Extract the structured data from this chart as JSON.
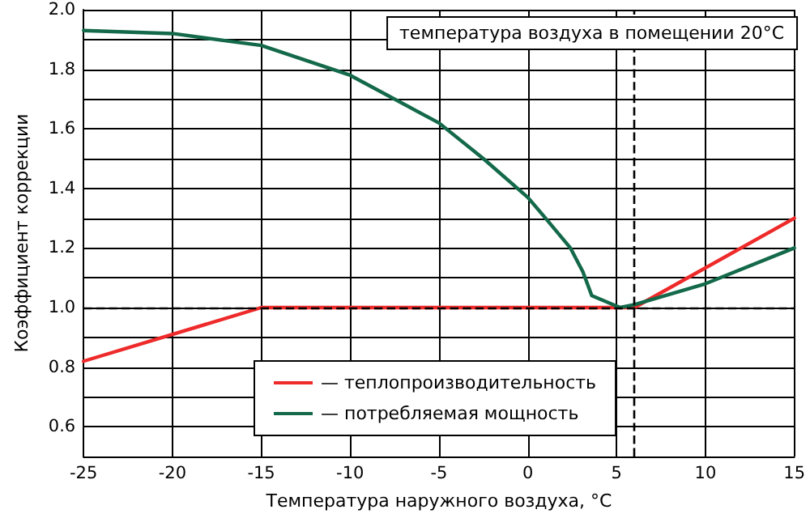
{
  "chart_data": {
    "type": "line",
    "xlabel": "Температура наружного воздуха, °C",
    "ylabel": "Коэффициент коррекции",
    "annotations": [
      "температура воздуха в помещении 20°C"
    ],
    "xlim": [
      -25,
      15
    ],
    "xticks": [
      -25,
      -20,
      -15,
      -10,
      -5,
      0,
      5,
      10,
      15
    ],
    "ylim": [
      0.5,
      2.0
    ],
    "yticks": [
      0.6,
      {
        "value": 0.7,
        "label": null
      },
      0.8,
      {
        "value": 0.9,
        "label": null
      },
      {
        "value": 1.0,
        "label": "1.0"
      },
      {
        "value": 1.1,
        "label": null
      },
      1.2,
      {
        "value": 1.3,
        "label": null
      },
      1.4,
      {
        "value": 1.5,
        "label": null
      },
      1.6,
      {
        "value": 1.7,
        "label": null
      },
      1.8,
      {
        "value": 1.9,
        "label": null
      },
      {
        "value": 2.0,
        "label": "2.0"
      }
    ],
    "grid": true,
    "legend": "bottom",
    "marker": "none",
    "line_style": "solid",
    "ref_lines": [
      {
        "axis": "y",
        "value": 1.0,
        "color": "#000000",
        "line_style": "dashed"
      },
      {
        "axis": "x",
        "value": 6,
        "color": "#000000",
        "line_style": "dashed"
      }
    ],
    "series": [
      {
        "name": "— теплопроизводительность",
        "color": "#ee2a2a",
        "x": [
          -25,
          -15,
          5,
          6,
          15
        ],
        "values": [
          0.82,
          1.0,
          1.0,
          1.0,
          1.3
        ]
      },
      {
        "name": "— потребляемая мощность",
        "color": "#13694a",
        "x": [
          -25,
          -20,
          -15,
          -10,
          -5,
          -2.5,
          0,
          1,
          2.4,
          3.1,
          3.6,
          5.2,
          6,
          10,
          15
        ],
        "values": [
          1.93,
          1.92,
          1.88,
          1.78,
          1.62,
          1.5,
          1.37,
          1.3,
          1.2,
          1.12,
          1.04,
          1.0,
          1.01,
          1.08,
          1.2
        ]
      }
    ]
  }
}
